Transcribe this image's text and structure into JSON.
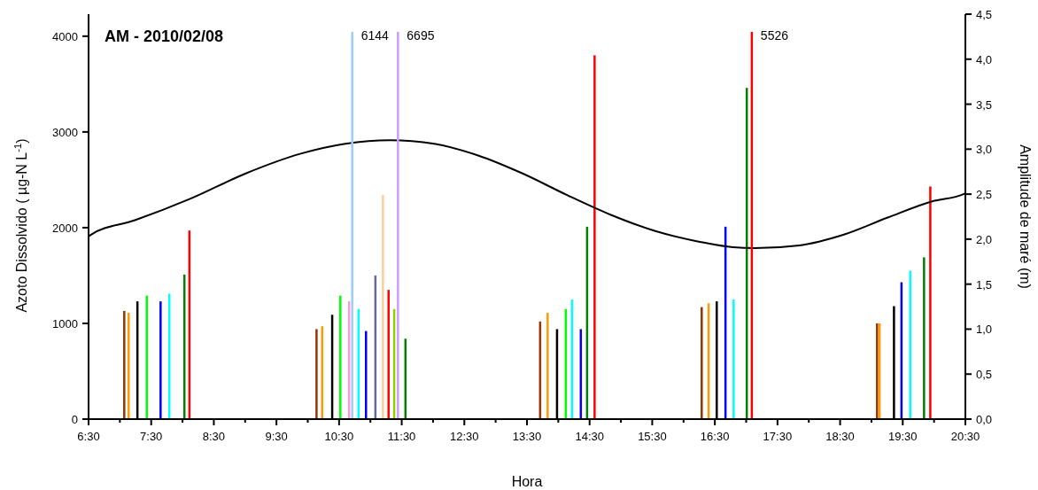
{
  "chart_data": {
    "type": "bar",
    "title": "AM - 2010/02/08",
    "xlabel": "Hora",
    "ylabel": "Azoto Dissolvido ( µg-N L$^{-1}$)",
    "y2label": "Amplitude de maré (m)",
    "xlim": [
      6.5,
      20.5
    ],
    "ylim": [
      0,
      4230
    ],
    "y2lim": [
      0,
      4.5
    ],
    "xticks": [
      {
        "value": 6.5,
        "label": "6:30"
      },
      {
        "value": 7,
        "label": null
      },
      {
        "value": 7.5,
        "label": "7:30"
      },
      {
        "value": 8,
        "label": null
      },
      {
        "value": 8.5,
        "label": "8:30"
      },
      {
        "value": 9,
        "label": null
      },
      {
        "value": 9.5,
        "label": "9:30"
      },
      {
        "value": 10,
        "label": null
      },
      {
        "value": 10.5,
        "label": "10:30"
      },
      {
        "value": 11,
        "label": null
      },
      {
        "value": 11.5,
        "label": "11:30"
      },
      {
        "value": 12,
        "label": null
      },
      {
        "value": 12.5,
        "label": "12:30"
      },
      {
        "value": 13,
        "label": null
      },
      {
        "value": 13.5,
        "label": "13:30"
      },
      {
        "value": 14,
        "label": null
      },
      {
        "value": 14.5,
        "label": "14:30"
      },
      {
        "value": 15,
        "label": null
      },
      {
        "value": 15.5,
        "label": "15:30"
      },
      {
        "value": 16,
        "label": null
      },
      {
        "value": 16.5,
        "label": "16:30"
      },
      {
        "value": 17,
        "label": null
      },
      {
        "value": 17.5,
        "label": "17:30"
      },
      {
        "value": 18,
        "label": null
      },
      {
        "value": 18.5,
        "label": "18:30"
      },
      {
        "value": 19,
        "label": null
      },
      {
        "value": 19.5,
        "label": "19:30"
      },
      {
        "value": 20,
        "label": null
      },
      {
        "value": 20.5,
        "label": "20:30"
      }
    ],
    "yticks": [
      0,
      1000,
      2000,
      3000,
      4000
    ],
    "ref_lines": [
      {
        "axis": "x",
        "value": 10.71,
        "color": "#99ccff"
      },
      {
        "axis": "x",
        "value": 11.44,
        "color": "#cc99ff"
      },
      {
        "axis": "x",
        "value": 17.09,
        "color": "#ff0000"
      }
    ],
    "annotations": [
      {
        "text": "6144",
        "x": 10.71
      },
      {
        "text": "6695",
        "x": 11.44
      },
      {
        "text": "5526",
        "x": 17.09
      }
    ],
    "y2ticks": [
      {
        "value": 0,
        "label": "0,0"
      },
      {
        "value": 0.5,
        "label": "0,5"
      },
      {
        "value": 1,
        "label": "1,0"
      },
      {
        "value": 1.5,
        "label": "1,5"
      },
      {
        "value": 2,
        "label": "2,0"
      },
      {
        "value": 2.5,
        "label": "2,5"
      },
      {
        "value": 3,
        "label": "3,0"
      },
      {
        "value": 3.5,
        "label": "3,5"
      },
      {
        "value": 4,
        "label": "4,0"
      },
      {
        "value": 4.5,
        "label": "4,5"
      }
    ],
    "series": [
      {
        "color": "#993300",
        "x": [
          7.07,
          10.14,
          13.71,
          16.29,
          19.09
        ],
        "values": [
          1130,
          940,
          1020,
          1170,
          1000
        ]
      },
      {
        "color": "#ff9900",
        "x": [
          7.14,
          10.23,
          13.83,
          16.4,
          19.13
        ],
        "values": [
          1110,
          970,
          1110,
          1210,
          1000
        ]
      },
      {
        "color": "#000000",
        "x": [
          7.28,
          10.39,
          13.98,
          16.53,
          19.36
        ],
        "values": [
          1230,
          1090,
          940,
          1230,
          1180
        ]
      },
      {
        "color": "#00ff00",
        "x": [
          7.43,
          10.52,
          14.12
        ],
        "values": [
          1290,
          1290,
          1150
        ]
      },
      {
        "color": "#0000ff",
        "x": [
          7.65,
          10.93,
          14.36,
          16.67,
          19.48
        ],
        "values": [
          1230,
          920,
          940,
          2010,
          1430
        ]
      },
      {
        "color": "#00ffff",
        "x": [
          7.79,
          10.81,
          14.22,
          16.8,
          19.62
        ],
        "values": [
          1310,
          1150,
          1250,
          1250,
          1550
        ]
      },
      {
        "color": "#008000",
        "x": [
          8.03,
          11.56,
          14.46,
          17.01,
          19.84
        ],
        "values": [
          1510,
          840,
          2010,
          3460,
          1690
        ]
      },
      {
        "color": "#ff0000",
        "x": [
          8.11,
          11.29,
          14.58,
          19.94
        ],
        "values": [
          1970,
          1350,
          3800,
          2430
        ]
      },
      {
        "color": "#ff99cc",
        "x": [
          10.66
        ],
        "values": [
          1230
        ]
      },
      {
        "color": "#666699",
        "x": [
          11.08
        ],
        "values": [
          1500
        ]
      },
      {
        "color": "#ffcc99",
        "x": [
          11.2
        ],
        "values": [
          2340
        ]
      },
      {
        "color": "#99cc00",
        "x": [
          11.38
        ],
        "values": [
          1150
        ]
      },
      {
        "type": "line",
        "axis": "y2",
        "color": "#000000",
        "x": [
          6.5,
          6.54,
          7.24,
          8.13,
          9.01,
          9.89,
          10.6,
          11.31,
          12.02,
          12.72,
          13.43,
          14.14,
          14.84,
          15.55,
          16.26,
          16.79,
          17.14,
          17.85,
          18.56,
          19.26,
          19.97,
          20.47,
          20.5
        ],
        "values": [
          2.03,
          2.05,
          2.21,
          2.45,
          2.73,
          2.95,
          3.06,
          3.1,
          3.06,
          2.93,
          2.73,
          2.49,
          2.27,
          2.09,
          1.97,
          1.91,
          1.9,
          1.93,
          2.05,
          2.24,
          2.42,
          2.5,
          2.51
        ]
      }
    ]
  }
}
